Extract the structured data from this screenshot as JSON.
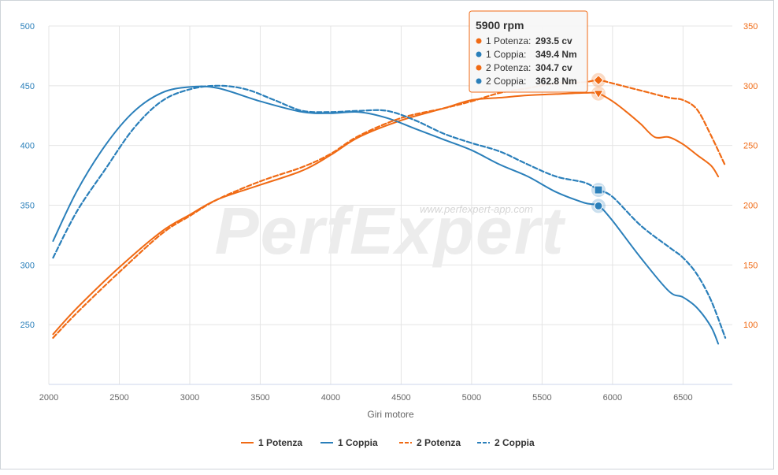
{
  "watermark": {
    "url": "www.perfexpert-app.com",
    "logo_text": "PerfExpert"
  },
  "tooltip": {
    "title": "5900 rpm",
    "rows": [
      {
        "label": "1 Potenza",
        "value": "293.5 cv",
        "color": "#f06a14"
      },
      {
        "label": "1 Coppia",
        "value": "349.4 Nm",
        "color": "#2a7fba"
      },
      {
        "label": "2 Potenza",
        "value": "304.7 cv",
        "color": "#f06a14"
      },
      {
        "label": "2 Coppia",
        "value": "362.8 Nm",
        "color": "#2a7fba"
      }
    ]
  },
  "chart_data": {
    "type": "line",
    "xlabel": "Giri motore",
    "xlim": [
      2000,
      6850
    ],
    "x_ticks": [
      2000,
      2500,
      3000,
      3500,
      4000,
      4500,
      5000,
      5500,
      6000,
      6500
    ],
    "y_left": {
      "ticks": [
        250,
        300,
        350,
        400,
        450,
        500
      ],
      "lim": [
        200,
        500
      ],
      "color": "#2a7fba"
    },
    "y_right": {
      "ticks": [
        100,
        150,
        200,
        250,
        300,
        350
      ],
      "lim": [
        50,
        350
      ],
      "color": "#f06a14"
    },
    "grid": true,
    "legend_position": "bottom",
    "hover_x": 5900,
    "series": [
      {
        "name": "1 Potenza",
        "axis": "right",
        "dash": false,
        "color": "#f06a14",
        "x": [
          2030,
          2200,
          2500,
          2800,
          3000,
          3200,
          3500,
          3800,
          4000,
          4200,
          4500,
          4800,
          5000,
          5200,
          5400,
          5600,
          5800,
          5900,
          6000,
          6100,
          6200,
          6300,
          6400,
          6500,
          6600,
          6700,
          6750
        ],
        "y": [
          92,
          114,
          148,
          178,
          192,
          205,
          217,
          229,
          242,
          257,
          271,
          281,
          288,
          290,
          292,
          293,
          294,
          293.5,
          287,
          278,
          268,
          257,
          257,
          251,
          242,
          233,
          224
        ]
      },
      {
        "name": "1 Coppia",
        "axis": "left",
        "dash": false,
        "color": "#2a7fba",
        "x": [
          2030,
          2200,
          2400,
          2600,
          2800,
          3000,
          3200,
          3500,
          3800,
          4000,
          4200,
          4400,
          4600,
          4800,
          5000,
          5200,
          5400,
          5600,
          5800,
          5900,
          6000,
          6200,
          6400,
          6500,
          6600,
          6700,
          6750
        ],
        "y": [
          320,
          362,
          400,
          428,
          444,
          449,
          448,
          437,
          428,
          427,
          428,
          423,
          414,
          405,
          396,
          384,
          374,
          361,
          352,
          349.4,
          337,
          306,
          278,
          273,
          264,
          248,
          234
        ]
      },
      {
        "name": "2 Potenza",
        "axis": "right",
        "dash": true,
        "color": "#f06a14",
        "x": [
          2030,
          2200,
          2500,
          2800,
          3000,
          3200,
          3500,
          3800,
          4000,
          4200,
          4500,
          4800,
          5000,
          5200,
          5400,
          5600,
          5800,
          5900,
          6000,
          6200,
          6400,
          6500,
          6600,
          6700,
          6800
        ],
        "y": [
          89,
          110,
          144,
          176,
          191,
          205,
          220,
          232,
          243,
          258,
          273,
          281,
          287,
          294,
          298,
          302,
          303,
          304.7,
          302,
          296,
          290,
          288,
          280,
          258,
          233
        ]
      },
      {
        "name": "2 Coppia",
        "axis": "left",
        "dash": true,
        "color": "#2a7fba",
        "x": [
          2030,
          2200,
          2400,
          2600,
          2800,
          3000,
          3200,
          3400,
          3600,
          3800,
          4000,
          4200,
          4400,
          4600,
          4800,
          5000,
          5200,
          5400,
          5600,
          5800,
          5900,
          6000,
          6200,
          6400,
          6500,
          6600,
          6700,
          6800
        ],
        "y": [
          306,
          345,
          380,
          414,
          437,
          447,
          450,
          447,
          438,
          429,
          428,
          429,
          429,
          421,
          410,
          402,
          395,
          384,
          374,
          369,
          362.8,
          357,
          333,
          315,
          306,
          292,
          270,
          239
        ]
      }
    ]
  }
}
